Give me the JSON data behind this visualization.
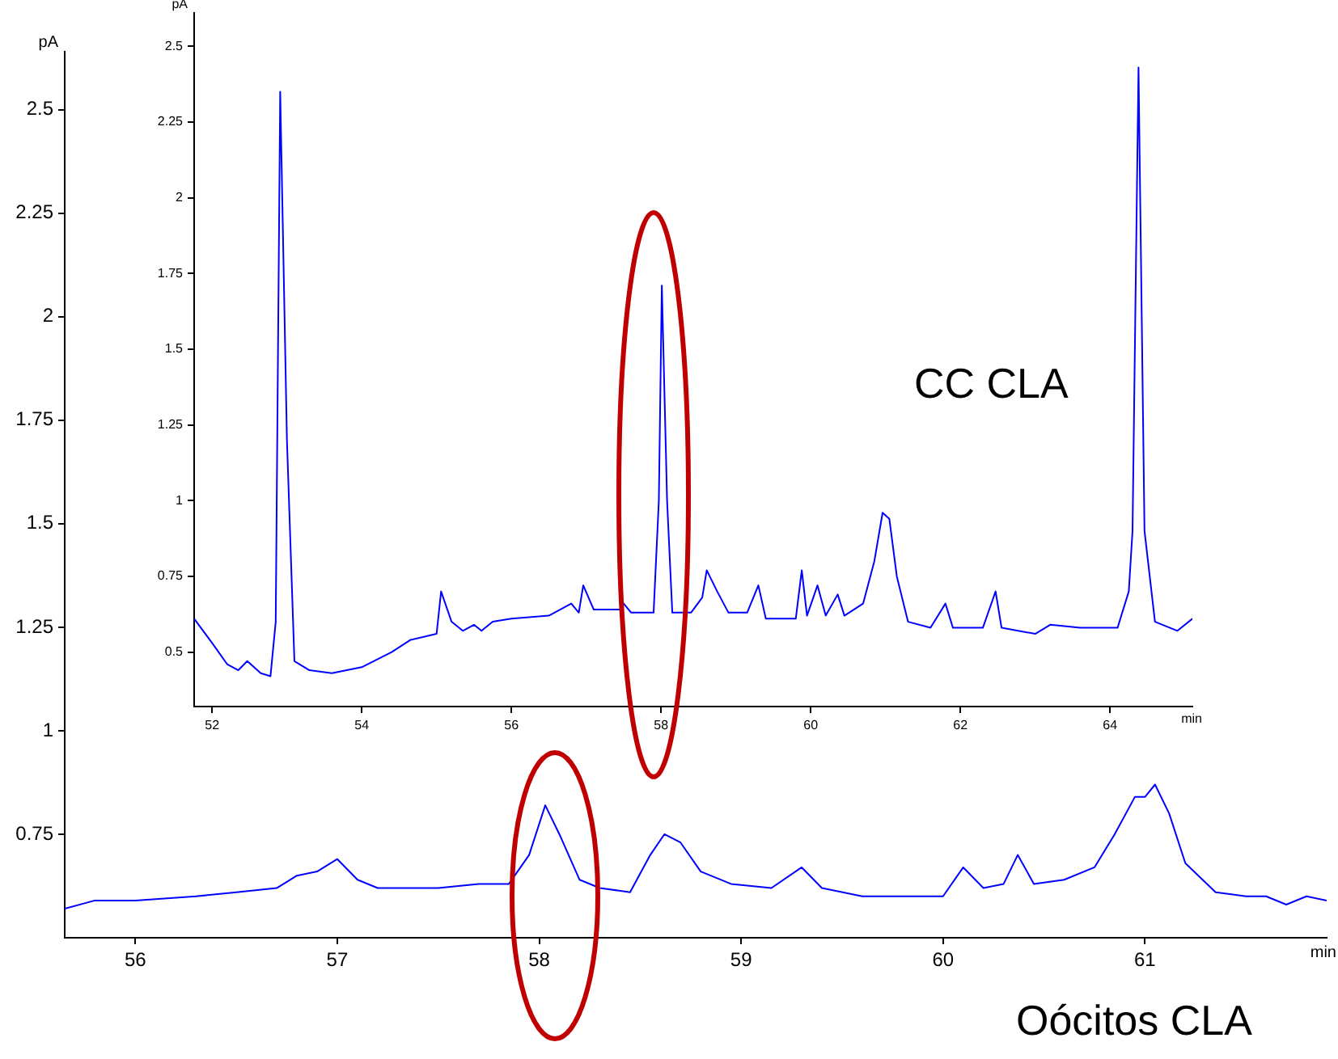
{
  "chart_data": [
    {
      "type": "line",
      "title": "CC CLA",
      "xlabel": "min",
      "ylabel": "pA",
      "xlim": [
        51.76,
        65.1
      ],
      "xticks": [
        52,
        54,
        56,
        58,
        60,
        62,
        64
      ],
      "ylim": [
        0.32,
        2.61
      ],
      "yticks": [
        0.5,
        0.75,
        1,
        1.25,
        1.5,
        1.75,
        2,
        2.25,
        2.5
      ],
      "series": [
        {
          "color": "#0000ff",
          "x": [
            51.76,
            52.0,
            52.2,
            52.35,
            52.47,
            52.65,
            52.78,
            52.85,
            52.91,
            53.0,
            53.1,
            53.3,
            53.6,
            54.0,
            54.4,
            54.65,
            55.0,
            55.06,
            55.2,
            55.35,
            55.5,
            55.6,
            55.75,
            56.0,
            56.5,
            56.8,
            56.9,
            56.96,
            57.1,
            57.45,
            57.5,
            57.6,
            57.9,
            57.97,
            58.01,
            58.08,
            58.15,
            58.4,
            58.55,
            58.61,
            58.75,
            58.9,
            59.15,
            59.3,
            59.4,
            59.8,
            59.88,
            59.95,
            60.09,
            60.2,
            60.36,
            60.45,
            60.7,
            60.85,
            60.96,
            61.05,
            61.15,
            61.3,
            61.6,
            61.8,
            61.9,
            62.3,
            62.47,
            62.55,
            63.0,
            63.2,
            63.6,
            64.1,
            64.25,
            64.3,
            64.38,
            64.46,
            64.6,
            64.9,
            65.1
          ],
          "values": [
            0.61,
            0.53,
            0.46,
            0.44,
            0.47,
            0.43,
            0.42,
            0.6,
            2.35,
            1.2,
            0.47,
            0.44,
            0.43,
            0.45,
            0.5,
            0.54,
            0.56,
            0.7,
            0.6,
            0.57,
            0.59,
            0.57,
            0.6,
            0.61,
            0.62,
            0.66,
            0.63,
            0.72,
            0.64,
            0.64,
            0.66,
            0.63,
            0.63,
            1.0,
            1.71,
            1.0,
            0.63,
            0.63,
            0.68,
            0.77,
            0.7,
            0.63,
            0.63,
            0.72,
            0.61,
            0.61,
            0.77,
            0.62,
            0.72,
            0.62,
            0.69,
            0.62,
            0.66,
            0.8,
            0.96,
            0.94,
            0.75,
            0.6,
            0.58,
            0.66,
            0.58,
            0.58,
            0.7,
            0.58,
            0.56,
            0.59,
            0.58,
            0.58,
            0.7,
            0.9,
            2.43,
            0.9,
            0.6,
            0.57,
            0.61
          ]
        }
      ]
    },
    {
      "type": "line",
      "title": "Oócitos CLA",
      "xlabel": "min",
      "ylabel": "pA",
      "xlim": [
        55.65,
        61.9
      ],
      "xticks": [
        56,
        57,
        58,
        59,
        60,
        61
      ],
      "ylim": [
        0.5,
        2.64
      ],
      "yticks": [
        0.75,
        1,
        1.25,
        1.5,
        1.75,
        2,
        2.25,
        2.5
      ],
      "series": [
        {
          "color": "#0000ff",
          "x": [
            55.65,
            55.8,
            56.0,
            56.3,
            56.5,
            56.7,
            56.8,
            56.9,
            57.0,
            57.1,
            57.2,
            57.5,
            57.7,
            57.85,
            57.95,
            58.03,
            58.1,
            58.2,
            58.3,
            58.45,
            58.55,
            58.62,
            58.7,
            58.8,
            58.95,
            59.15,
            59.3,
            59.4,
            59.6,
            59.8,
            60.0,
            60.1,
            60.2,
            60.3,
            60.37,
            60.45,
            60.6,
            60.75,
            60.85,
            60.95,
            61.0,
            61.05,
            61.12,
            61.2,
            61.35,
            61.5,
            61.6,
            61.7,
            61.8,
            61.9
          ],
          "values": [
            0.57,
            0.59,
            0.59,
            0.6,
            0.61,
            0.62,
            0.65,
            0.66,
            0.69,
            0.64,
            0.62,
            0.62,
            0.63,
            0.63,
            0.7,
            0.82,
            0.75,
            0.64,
            0.62,
            0.61,
            0.7,
            0.75,
            0.73,
            0.66,
            0.63,
            0.62,
            0.67,
            0.62,
            0.6,
            0.6,
            0.6,
            0.67,
            0.62,
            0.63,
            0.7,
            0.63,
            0.64,
            0.67,
            0.75,
            0.84,
            0.84,
            0.87,
            0.8,
            0.68,
            0.61,
            0.6,
            0.6,
            0.58,
            0.6,
            0.59
          ]
        }
      ]
    }
  ]
}
